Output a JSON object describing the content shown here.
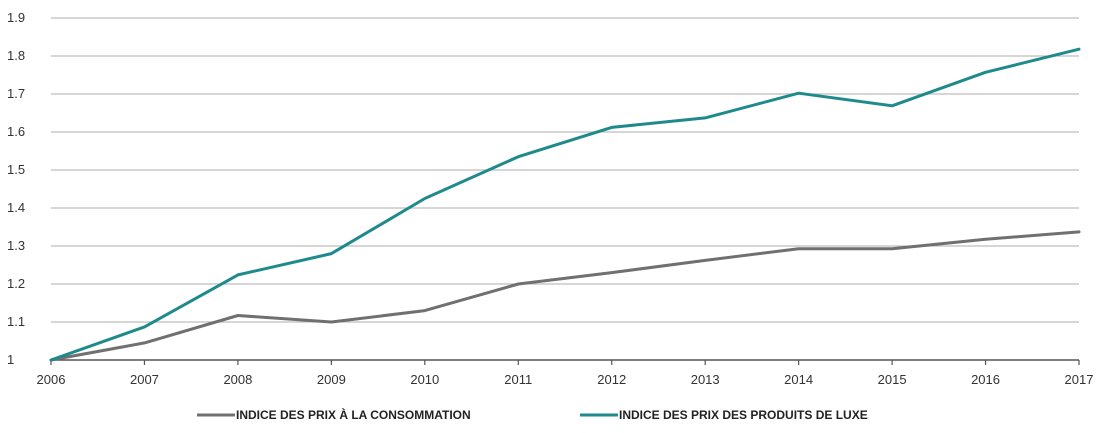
{
  "chart_data": {
    "type": "line",
    "title": "",
    "xlabel": "",
    "ylabel": "",
    "x": [
      2006,
      2007,
      2008,
      2009,
      2010,
      2011,
      2012,
      2013,
      2014,
      2015,
      2016,
      2017
    ],
    "x_ticks": [
      "2006",
      "2007",
      "2008",
      "2009",
      "2010",
      "2011",
      "2012",
      "2013",
      "2014",
      "2015",
      "2016",
      "2017"
    ],
    "ylim": [
      1,
      1.9
    ],
    "y_ticks": [
      "1",
      "1.1",
      "1.2",
      "1.3",
      "1.4",
      "1.5",
      "1.6",
      "1.7",
      "1.8",
      "1.9"
    ],
    "grid": "horizontal",
    "legend_position": "bottom",
    "series": [
      {
        "name": "INDICE DES PRIX À LA CONSOMMATION",
        "color": "#707070",
        "values": [
          1.0,
          1.045,
          1.117,
          1.1,
          1.13,
          1.2,
          1.23,
          1.262,
          1.293,
          1.293,
          1.318,
          1.337
        ]
      },
      {
        "name": "INDICE DES PRIX DES PRODUITS DE LUXE",
        "color": "#1f8a8c",
        "values": [
          1.0,
          1.087,
          1.224,
          1.28,
          1.425,
          1.535,
          1.612,
          1.637,
          1.702,
          1.669,
          1.757,
          1.818
        ]
      }
    ]
  }
}
